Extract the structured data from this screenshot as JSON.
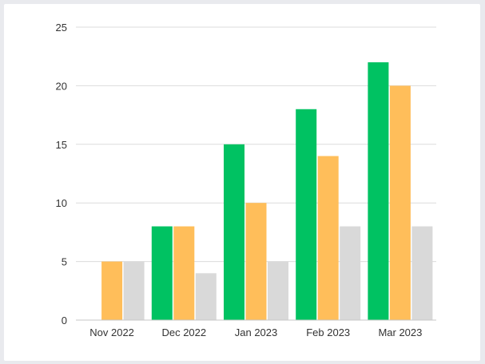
{
  "chart_data": {
    "type": "bar",
    "categories": [
      "Nov 2022",
      "Dec 2022",
      "Jan 2023",
      "Feb 2023",
      "Mar 2023"
    ],
    "series": [
      {
        "values": [
          0,
          8,
          15,
          18,
          22
        ],
        "color": "#00c262"
      },
      {
        "values": [
          5,
          8,
          10,
          14,
          20
        ],
        "color": "#ffbe5a"
      },
      {
        "values": [
          5,
          4,
          5,
          8,
          8
        ],
        "color": "#d9d9d9"
      }
    ],
    "yticks": [
      "0",
      "5",
      "10",
      "15",
      "20",
      "25"
    ],
    "ylim": [
      0,
      25
    ],
    "grid": true,
    "title": "",
    "xlabel": "",
    "ylabel": ""
  }
}
